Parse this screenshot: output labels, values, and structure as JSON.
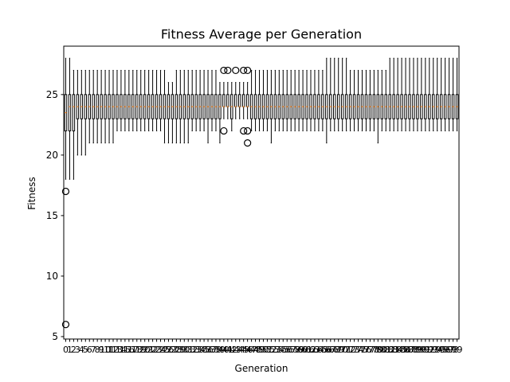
{
  "chart_data": {
    "type": "box",
    "title": "Fitness Average per Generation",
    "xlabel": "Generation",
    "ylabel": "Fitness",
    "ylim": [
      4.8,
      29.0
    ],
    "yticks": [
      5,
      10,
      15,
      20,
      25
    ],
    "grid": false,
    "legend": "none",
    "colors": {
      "box": "#000000",
      "median": "#ff7f0e",
      "flier": "#000000"
    },
    "categories": [
      "0",
      "1",
      "2",
      "3",
      "4",
      "5",
      "6",
      "7",
      "8",
      "9",
      "10",
      "11",
      "12",
      "13",
      "14",
      "15",
      "16",
      "17",
      "18",
      "19",
      "20",
      "21",
      "22",
      "23",
      "24",
      "25",
      "26",
      "27",
      "28",
      "29",
      "30",
      "31",
      "32",
      "33",
      "34",
      "35",
      "36",
      "37",
      "38",
      "39",
      "40",
      "41",
      "42",
      "43",
      "44",
      "45",
      "46",
      "47",
      "48",
      "49",
      "50",
      "51",
      "52",
      "53",
      "54",
      "55",
      "56",
      "57",
      "58",
      "59",
      "60",
      "61",
      "62",
      "63",
      "64",
      "65",
      "66",
      "67",
      "68",
      "69",
      "70",
      "71",
      "72",
      "73",
      "74",
      "75",
      "76",
      "77",
      "78",
      "79",
      "80",
      "81",
      "82",
      "83",
      "84",
      "85",
      "86",
      "87",
      "88",
      "89",
      "90",
      "91",
      "92",
      "93",
      "94",
      "95",
      "96",
      "97",
      "98",
      "99"
    ],
    "boxes": [
      {
        "x": "0",
        "whislo": 18,
        "q1": 22,
        "med": 23.5,
        "q3": 25,
        "whishi": 28,
        "fliers": [
          17,
          6
        ]
      },
      {
        "x": "1",
        "whislo": 18,
        "q1": 22,
        "med": 24,
        "q3": 25,
        "whishi": 28,
        "fliers": []
      },
      {
        "x": "2",
        "whislo": 18,
        "q1": 22,
        "med": 24,
        "q3": 25,
        "whishi": 27,
        "fliers": []
      },
      {
        "x": "3",
        "whislo": 20,
        "q1": 23,
        "med": 24,
        "q3": 25,
        "whishi": 27,
        "fliers": []
      },
      {
        "x": "4",
        "whislo": 20,
        "q1": 23,
        "med": 24,
        "q3": 25,
        "whishi": 27,
        "fliers": []
      },
      {
        "x": "5",
        "whislo": 20,
        "q1": 23,
        "med": 24,
        "q3": 25,
        "whishi": 27,
        "fliers": []
      },
      {
        "x": "6",
        "whislo": 21,
        "q1": 23,
        "med": 24,
        "q3": 25,
        "whishi": 27,
        "fliers": []
      },
      {
        "x": "7",
        "whislo": 21,
        "q1": 23,
        "med": 24,
        "q3": 25,
        "whishi": 27,
        "fliers": []
      },
      {
        "x": "8",
        "whislo": 21,
        "q1": 23,
        "med": 24,
        "q3": 25,
        "whishi": 27,
        "fliers": []
      },
      {
        "x": "9",
        "whislo": 21,
        "q1": 23,
        "med": 24,
        "q3": 25,
        "whishi": 27,
        "fliers": []
      },
      {
        "x": "10",
        "whislo": 21,
        "q1": 23,
        "med": 24,
        "q3": 25,
        "whishi": 27,
        "fliers": []
      },
      {
        "x": "11",
        "whislo": 21,
        "q1": 23,
        "med": 24,
        "q3": 25,
        "whishi": 27,
        "fliers": []
      },
      {
        "x": "12",
        "whislo": 21,
        "q1": 23,
        "med": 24,
        "q3": 25,
        "whishi": 27,
        "fliers": []
      },
      {
        "x": "13",
        "whislo": 22,
        "q1": 23,
        "med": 24,
        "q3": 25,
        "whishi": 27,
        "fliers": []
      },
      {
        "x": "14",
        "whislo": 22,
        "q1": 23,
        "med": 24,
        "q3": 25,
        "whishi": 27,
        "fliers": []
      },
      {
        "x": "15",
        "whislo": 22,
        "q1": 23,
        "med": 24,
        "q3": 25,
        "whishi": 27,
        "fliers": []
      },
      {
        "x": "16",
        "whislo": 22,
        "q1": 23,
        "med": 24,
        "q3": 25,
        "whishi": 27,
        "fliers": []
      },
      {
        "x": "17",
        "whislo": 22,
        "q1": 23,
        "med": 24,
        "q3": 25,
        "whishi": 27,
        "fliers": []
      },
      {
        "x": "18",
        "whislo": 22,
        "q1": 23,
        "med": 24,
        "q3": 25,
        "whishi": 27,
        "fliers": []
      },
      {
        "x": "19",
        "whislo": 22,
        "q1": 23,
        "med": 24,
        "q3": 25,
        "whishi": 27,
        "fliers": []
      },
      {
        "x": "20",
        "whislo": 22,
        "q1": 23,
        "med": 24,
        "q3": 25,
        "whishi": 27,
        "fliers": []
      },
      {
        "x": "21",
        "whislo": 22,
        "q1": 23,
        "med": 24,
        "q3": 25,
        "whishi": 27,
        "fliers": []
      },
      {
        "x": "22",
        "whislo": 22,
        "q1": 23,
        "med": 24,
        "q3": 25,
        "whishi": 27,
        "fliers": []
      },
      {
        "x": "23",
        "whislo": 22,
        "q1": 23,
        "med": 24,
        "q3": 25,
        "whishi": 27,
        "fliers": []
      },
      {
        "x": "24",
        "whislo": 22,
        "q1": 23,
        "med": 24,
        "q3": 25,
        "whishi": 27,
        "fliers": []
      },
      {
        "x": "25",
        "whislo": 21,
        "q1": 23,
        "med": 24,
        "q3": 25,
        "whishi": 27,
        "fliers": []
      },
      {
        "x": "26",
        "whislo": 21,
        "q1": 23,
        "med": 24,
        "q3": 25,
        "whishi": 26,
        "fliers": []
      },
      {
        "x": "27",
        "whislo": 21,
        "q1": 23,
        "med": 24,
        "q3": 25,
        "whishi": 26,
        "fliers": []
      },
      {
        "x": "28",
        "whislo": 21,
        "q1": 23,
        "med": 24,
        "q3": 25,
        "whishi": 27,
        "fliers": []
      },
      {
        "x": "29",
        "whislo": 21,
        "q1": 23,
        "med": 24,
        "q3": 25,
        "whishi": 27,
        "fliers": []
      },
      {
        "x": "30",
        "whislo": 21,
        "q1": 23,
        "med": 24,
        "q3": 25,
        "whishi": 27,
        "fliers": []
      },
      {
        "x": "31",
        "whislo": 21,
        "q1": 23,
        "med": 24,
        "q3": 25,
        "whishi": 27,
        "fliers": []
      },
      {
        "x": "32",
        "whislo": 22,
        "q1": 23,
        "med": 24,
        "q3": 25,
        "whishi": 27,
        "fliers": []
      },
      {
        "x": "33",
        "whislo": 22,
        "q1": 23,
        "med": 24,
        "q3": 25,
        "whishi": 27,
        "fliers": []
      },
      {
        "x": "34",
        "whislo": 22,
        "q1": 23,
        "med": 24,
        "q3": 25,
        "whishi": 27,
        "fliers": []
      },
      {
        "x": "35",
        "whislo": 22,
        "q1": 23,
        "med": 24,
        "q3": 25,
        "whishi": 27,
        "fliers": []
      },
      {
        "x": "36",
        "whislo": 21,
        "q1": 23,
        "med": 24,
        "q3": 25,
        "whishi": 27,
        "fliers": []
      },
      {
        "x": "37",
        "whislo": 22,
        "q1": 23,
        "med": 24,
        "q3": 25,
        "whishi": 27,
        "fliers": []
      },
      {
        "x": "38",
        "whislo": 22,
        "q1": 23,
        "med": 24,
        "q3": 25,
        "whishi": 27,
        "fliers": []
      },
      {
        "x": "39",
        "whislo": 21,
        "q1": 23,
        "med": 24,
        "q3": 25,
        "whishi": 26,
        "fliers": []
      },
      {
        "x": "40",
        "whislo": 23,
        "q1": 24,
        "med": 24,
        "q3": 25,
        "whishi": 26,
        "fliers": [
          27,
          22
        ]
      },
      {
        "x": "41",
        "whislo": 23,
        "q1": 24,
        "med": 24,
        "q3": 25,
        "whishi": 26,
        "fliers": [
          27
        ]
      },
      {
        "x": "42",
        "whislo": 22,
        "q1": 23,
        "med": 24,
        "q3": 25,
        "whishi": 26,
        "fliers": []
      },
      {
        "x": "43",
        "whislo": 23,
        "q1": 24,
        "med": 24,
        "q3": 25,
        "whishi": 26,
        "fliers": [
          27
        ]
      },
      {
        "x": "44",
        "whislo": 23,
        "q1": 24,
        "med": 24,
        "q3": 25,
        "whishi": 26,
        "fliers": []
      },
      {
        "x": "45",
        "whislo": 23,
        "q1": 24,
        "med": 24,
        "q3": 25,
        "whishi": 26,
        "fliers": [
          27,
          22
        ]
      },
      {
        "x": "46",
        "whislo": 23,
        "q1": 24,
        "med": 24,
        "q3": 25,
        "whishi": 26,
        "fliers": [
          27,
          22,
          21
        ]
      },
      {
        "x": "47",
        "whislo": 22,
        "q1": 23,
        "med": 24,
        "q3": 25,
        "whishi": 27,
        "fliers": []
      },
      {
        "x": "48",
        "whislo": 22,
        "q1": 23,
        "med": 24,
        "q3": 25,
        "whishi": 27,
        "fliers": []
      },
      {
        "x": "49",
        "whislo": 22,
        "q1": 23,
        "med": 24,
        "q3": 25,
        "whishi": 27,
        "fliers": []
      },
      {
        "x": "50",
        "whislo": 22,
        "q1": 23,
        "med": 24,
        "q3": 25,
        "whishi": 27,
        "fliers": []
      },
      {
        "x": "51",
        "whislo": 22,
        "q1": 23,
        "med": 24,
        "q3": 25,
        "whishi": 27,
        "fliers": []
      },
      {
        "x": "52",
        "whislo": 21,
        "q1": 23,
        "med": 24,
        "q3": 25,
        "whishi": 27,
        "fliers": []
      },
      {
        "x": "53",
        "whislo": 22,
        "q1": 23,
        "med": 24,
        "q3": 25,
        "whishi": 27,
        "fliers": []
      },
      {
        "x": "54",
        "whislo": 22,
        "q1": 23,
        "med": 24,
        "q3": 25,
        "whishi": 27,
        "fliers": []
      },
      {
        "x": "55",
        "whislo": 22,
        "q1": 23,
        "med": 24,
        "q3": 25,
        "whishi": 27,
        "fliers": []
      },
      {
        "x": "56",
        "whislo": 22,
        "q1": 23,
        "med": 24,
        "q3": 25,
        "whishi": 27,
        "fliers": []
      },
      {
        "x": "57",
        "whislo": 22,
        "q1": 23,
        "med": 24,
        "q3": 25,
        "whishi": 27,
        "fliers": []
      },
      {
        "x": "58",
        "whislo": 22,
        "q1": 23,
        "med": 24,
        "q3": 25,
        "whishi": 27,
        "fliers": []
      },
      {
        "x": "59",
        "whislo": 22,
        "q1": 23,
        "med": 24,
        "q3": 25,
        "whishi": 27,
        "fliers": []
      },
      {
        "x": "60",
        "whislo": 22,
        "q1": 23,
        "med": 24,
        "q3": 25,
        "whishi": 27,
        "fliers": []
      },
      {
        "x": "61",
        "whislo": 22,
        "q1": 23,
        "med": 24,
        "q3": 25,
        "whishi": 27,
        "fliers": []
      },
      {
        "x": "62",
        "whislo": 22,
        "q1": 23,
        "med": 24,
        "q3": 25,
        "whishi": 27,
        "fliers": []
      },
      {
        "x": "63",
        "whislo": 22,
        "q1": 23,
        "med": 24,
        "q3": 25,
        "whishi": 27,
        "fliers": []
      },
      {
        "x": "64",
        "whislo": 22,
        "q1": 23,
        "med": 24,
        "q3": 25,
        "whishi": 27,
        "fliers": []
      },
      {
        "x": "65",
        "whislo": 22,
        "q1": 23,
        "med": 24,
        "q3": 25,
        "whishi": 27,
        "fliers": []
      },
      {
        "x": "66",
        "whislo": 21,
        "q1": 23,
        "med": 24,
        "q3": 25,
        "whishi": 28,
        "fliers": []
      },
      {
        "x": "67",
        "whislo": 22,
        "q1": 23,
        "med": 24,
        "q3": 25,
        "whishi": 28,
        "fliers": []
      },
      {
        "x": "68",
        "whislo": 22,
        "q1": 23,
        "med": 24,
        "q3": 25,
        "whishi": 28,
        "fliers": []
      },
      {
        "x": "69",
        "whislo": 22,
        "q1": 23,
        "med": 24,
        "q3": 25,
        "whishi": 28,
        "fliers": []
      },
      {
        "x": "70",
        "whislo": 22,
        "q1": 23,
        "med": 24,
        "q3": 25,
        "whishi": 28,
        "fliers": []
      },
      {
        "x": "71",
        "whislo": 22,
        "q1": 23,
        "med": 24,
        "q3": 25,
        "whishi": 28,
        "fliers": []
      },
      {
        "x": "72",
        "whislo": 22,
        "q1": 23,
        "med": 24,
        "q3": 25,
        "whishi": 27,
        "fliers": []
      },
      {
        "x": "73",
        "whislo": 22,
        "q1": 23,
        "med": 24,
        "q3": 25,
        "whishi": 27,
        "fliers": []
      },
      {
        "x": "74",
        "whislo": 22,
        "q1": 23,
        "med": 24,
        "q3": 25,
        "whishi": 27,
        "fliers": []
      },
      {
        "x": "75",
        "whislo": 22,
        "q1": 23,
        "med": 24,
        "q3": 25,
        "whishi": 27,
        "fliers": []
      },
      {
        "x": "76",
        "whislo": 22,
        "q1": 23,
        "med": 24,
        "q3": 25,
        "whishi": 27,
        "fliers": []
      },
      {
        "x": "77",
        "whislo": 22,
        "q1": 23,
        "med": 24,
        "q3": 25,
        "whishi": 27,
        "fliers": []
      },
      {
        "x": "78",
        "whislo": 22,
        "q1": 23,
        "med": 24,
        "q3": 25,
        "whishi": 27,
        "fliers": []
      },
      {
        "x": "79",
        "whislo": 21,
        "q1": 23,
        "med": 24,
        "q3": 25,
        "whishi": 27,
        "fliers": []
      },
      {
        "x": "80",
        "whislo": 22,
        "q1": 23,
        "med": 24,
        "q3": 25,
        "whishi": 27,
        "fliers": []
      },
      {
        "x": "81",
        "whislo": 22,
        "q1": 23,
        "med": 24,
        "q3": 25,
        "whishi": 27,
        "fliers": []
      },
      {
        "x": "82",
        "whislo": 22,
        "q1": 23,
        "med": 24,
        "q3": 25,
        "whishi": 28,
        "fliers": []
      },
      {
        "x": "83",
        "whislo": 22,
        "q1": 23,
        "med": 24,
        "q3": 25,
        "whishi": 28,
        "fliers": []
      },
      {
        "x": "84",
        "whislo": 22,
        "q1": 23,
        "med": 24,
        "q3": 25,
        "whishi": 28,
        "fliers": []
      },
      {
        "x": "85",
        "whislo": 22,
        "q1": 23,
        "med": 24,
        "q3": 25,
        "whishi": 28,
        "fliers": []
      },
      {
        "x": "86",
        "whislo": 22,
        "q1": 23,
        "med": 24,
        "q3": 25,
        "whishi": 28,
        "fliers": []
      },
      {
        "x": "87",
        "whislo": 22,
        "q1": 23,
        "med": 24,
        "q3": 25,
        "whishi": 28,
        "fliers": []
      },
      {
        "x": "88",
        "whislo": 22,
        "q1": 23,
        "med": 24,
        "q3": 25,
        "whishi": 28,
        "fliers": []
      },
      {
        "x": "89",
        "whislo": 22,
        "q1": 23,
        "med": 24,
        "q3": 25,
        "whishi": 28,
        "fliers": []
      },
      {
        "x": "90",
        "whislo": 22,
        "q1": 23,
        "med": 24,
        "q3": 25,
        "whishi": 28,
        "fliers": []
      },
      {
        "x": "91",
        "whislo": 22,
        "q1": 23,
        "med": 24,
        "q3": 25,
        "whishi": 28,
        "fliers": []
      },
      {
        "x": "92",
        "whislo": 22,
        "q1": 23,
        "med": 24,
        "q3": 25,
        "whishi": 28,
        "fliers": []
      },
      {
        "x": "93",
        "whislo": 22,
        "q1": 23,
        "med": 24,
        "q3": 25,
        "whishi": 28,
        "fliers": []
      },
      {
        "x": "94",
        "whislo": 22,
        "q1": 23,
        "med": 24,
        "q3": 25,
        "whishi": 28,
        "fliers": []
      },
      {
        "x": "95",
        "whislo": 22,
        "q1": 23,
        "med": 24,
        "q3": 25,
        "whishi": 28,
        "fliers": []
      },
      {
        "x": "96",
        "whislo": 22,
        "q1": 23,
        "med": 24,
        "q3": 25,
        "whishi": 28,
        "fliers": []
      },
      {
        "x": "97",
        "whislo": 22,
        "q1": 23,
        "med": 24,
        "q3": 25,
        "whishi": 28,
        "fliers": []
      },
      {
        "x": "98",
        "whislo": 22,
        "q1": 23,
        "med": 24,
        "q3": 25,
        "whishi": 28,
        "fliers": []
      },
      {
        "x": "99",
        "whislo": 22,
        "q1": 23,
        "med": 24,
        "q3": 25,
        "whishi": 28,
        "fliers": []
      }
    ]
  }
}
